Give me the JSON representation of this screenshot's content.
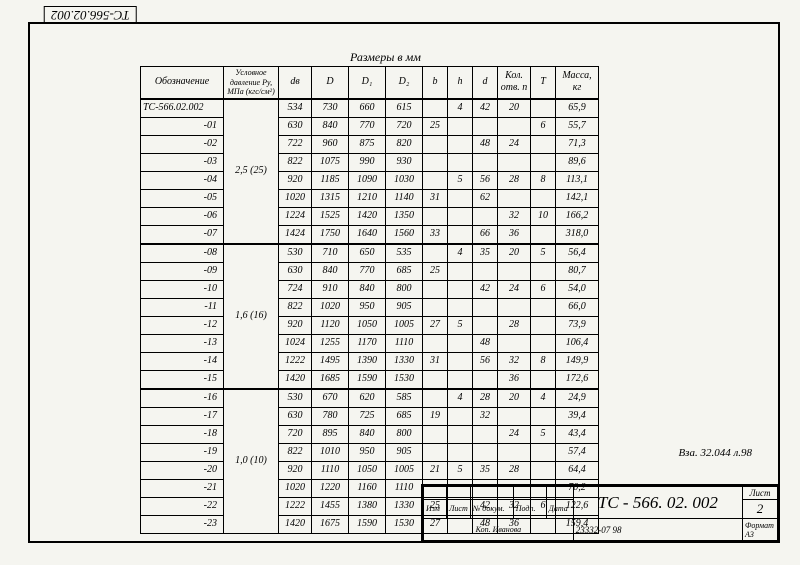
{
  "doc_code_top": "ТС-566.02.002",
  "table_title": "Размеры в мм",
  "headers": [
    "Обозначение",
    "Условное давление Ру, МПа (кгс/см²)",
    "dв",
    "D",
    "D₁",
    "D₂",
    "b",
    "h",
    "d",
    "Кол. отв. n",
    "T",
    "Масса, кг"
  ],
  "group1_label": "2,5 (25)",
  "group2_label": "1,6 (16)",
  "group3_label": "1,0 (10)",
  "rows": [
    {
      "des": "ТС-566.02.002",
      "dv": "534",
      "D": "730",
      "D1": "660",
      "D2": "615",
      "b": "",
      "h": "4",
      "d": "42",
      "n": "20",
      "T": "",
      "mass": "65,9"
    },
    {
      "des": "-01",
      "dv": "630",
      "D": "840",
      "D1": "770",
      "D2": "720",
      "b": "25",
      "h": "",
      "d": "",
      "n": "",
      "T": "6",
      "mass": "55,7"
    },
    {
      "des": "-02",
      "dv": "722",
      "D": "960",
      "D1": "875",
      "D2": "820",
      "b": "",
      "h": "",
      "d": "48",
      "n": "24",
      "T": "",
      "mass": "71,3"
    },
    {
      "des": "-03",
      "dv": "822",
      "D": "1075",
      "D1": "990",
      "D2": "930",
      "b": "",
      "h": "",
      "d": "",
      "n": "",
      "T": "",
      "mass": "89,6"
    },
    {
      "des": "-04",
      "dv": "920",
      "D": "1185",
      "D1": "1090",
      "D2": "1030",
      "b": "",
      "h": "5",
      "d": "56",
      "n": "28",
      "T": "8",
      "mass": "113,1"
    },
    {
      "des": "-05",
      "dv": "1020",
      "D": "1315",
      "D1": "1210",
      "D2": "1140",
      "b": "31",
      "h": "",
      "d": "62",
      "n": "",
      "T": "",
      "mass": "142,1"
    },
    {
      "des": "-06",
      "dv": "1224",
      "D": "1525",
      "D1": "1420",
      "D2": "1350",
      "b": "",
      "h": "",
      "d": "",
      "n": "32",
      "T": "10",
      "mass": "166,2"
    },
    {
      "des": "-07",
      "dv": "1424",
      "D": "1750",
      "D1": "1640",
      "D2": "1560",
      "b": "33",
      "h": "",
      "d": "66",
      "n": "36",
      "T": "",
      "mass": "318,0"
    },
    {
      "des": "-08",
      "dv": "530",
      "D": "710",
      "D1": "650",
      "D2": "535",
      "b": "",
      "h": "4",
      "d": "35",
      "n": "20",
      "T": "5",
      "mass": "56,4"
    },
    {
      "des": "-09",
      "dv": "630",
      "D": "840",
      "D1": "770",
      "D2": "685",
      "b": "25",
      "h": "",
      "d": "",
      "n": "",
      "T": "",
      "mass": "80,7"
    },
    {
      "des": "-10",
      "dv": "724",
      "D": "910",
      "D1": "840",
      "D2": "800",
      "b": "",
      "h": "",
      "d": "42",
      "n": "24",
      "T": "6",
      "mass": "54,0"
    },
    {
      "des": "-11",
      "dv": "822",
      "D": "1020",
      "D1": "950",
      "D2": "905",
      "b": "",
      "h": "",
      "d": "",
      "n": "",
      "T": "",
      "mass": "66,0"
    },
    {
      "des": "-12",
      "dv": "920",
      "D": "1120",
      "D1": "1050",
      "D2": "1005",
      "b": "27",
      "h": "5",
      "d": "",
      "n": "28",
      "T": "",
      "mass": "73,9"
    },
    {
      "des": "-13",
      "dv": "1024",
      "D": "1255",
      "D1": "1170",
      "D2": "1110",
      "b": "",
      "h": "",
      "d": "48",
      "n": "",
      "T": "",
      "mass": "106,4"
    },
    {
      "des": "-14",
      "dv": "1222",
      "D": "1495",
      "D1": "1390",
      "D2": "1330",
      "b": "31",
      "h": "",
      "d": "56",
      "n": "32",
      "T": "8",
      "mass": "149,9"
    },
    {
      "des": "-15",
      "dv": "1420",
      "D": "1685",
      "D1": "1590",
      "D2": "1530",
      "b": "",
      "h": "",
      "d": "",
      "n": "36",
      "T": "",
      "mass": "172,6"
    },
    {
      "des": "-16",
      "dv": "530",
      "D": "670",
      "D1": "620",
      "D2": "585",
      "b": "",
      "h": "4",
      "d": "28",
      "n": "20",
      "T": "4",
      "mass": "24,9"
    },
    {
      "des": "-17",
      "dv": "630",
      "D": "780",
      "D1": "725",
      "D2": "685",
      "b": "19",
      "h": "",
      "d": "32",
      "n": "",
      "T": "",
      "mass": "39,4"
    },
    {
      "des": "-18",
      "dv": "720",
      "D": "895",
      "D1": "840",
      "D2": "800",
      "b": "",
      "h": "",
      "d": "",
      "n": "24",
      "T": "5",
      "mass": "43,4"
    },
    {
      "des": "-19",
      "dv": "822",
      "D": "1010",
      "D1": "950",
      "D2": "905",
      "b": "",
      "h": "",
      "d": "",
      "n": "",
      "T": "",
      "mass": "57,4"
    },
    {
      "des": "-20",
      "dv": "920",
      "D": "1110",
      "D1": "1050",
      "D2": "1005",
      "b": "21",
      "h": "5",
      "d": "35",
      "n": "28",
      "T": "",
      "mass": "64,4"
    },
    {
      "des": "-21",
      "dv": "1020",
      "D": "1220",
      "D1": "1160",
      "D2": "1110",
      "b": "",
      "h": "",
      "d": "",
      "n": "",
      "T": "",
      "mass": "70,2"
    },
    {
      "des": "-22",
      "dv": "1222",
      "D": "1455",
      "D1": "1380",
      "D2": "1330",
      "b": "25",
      "h": "",
      "d": "42",
      "n": "32",
      "T": "6",
      "mass": "122,6"
    },
    {
      "des": "-23",
      "dv": "1420",
      "D": "1675",
      "D1": "1590",
      "D2": "1530",
      "b": "27",
      "h": "",
      "d": "48",
      "n": "36",
      "T": "",
      "mass": "159,4"
    }
  ],
  "side_note": "Вза. 32.044 л.98",
  "title_doc": "ТС - 566. 02. 002",
  "sheet_label": "Лист",
  "sheet_num": "2",
  "bottom_small1": "Изм",
  "bottom_small2": "Лист",
  "bottom_small3": "№ докум.",
  "bottom_small4": "Подп.",
  "bottom_small5": "Дата",
  "bottom_note": "Коп. Иванова",
  "bottom_code": "23332-07   98",
  "bottom_format": "Формат A3"
}
